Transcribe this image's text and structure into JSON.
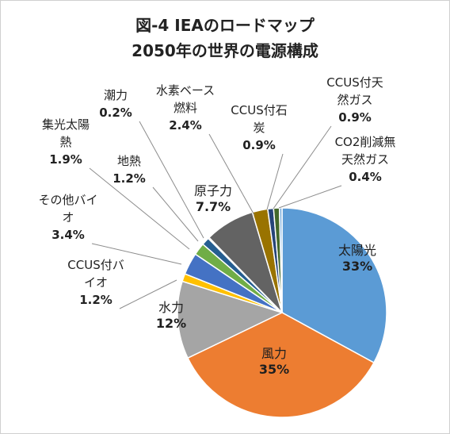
{
  "chart_data": {
    "type": "pie",
    "title": [
      "図-4 IEAのロードマップ",
      "2050年の世界の電源構成"
    ],
    "start_angle_deg": 0,
    "direction": "clockwise",
    "slices": [
      {
        "name": "太陽光",
        "value": 33,
        "display": "33%",
        "color": "#5b9bd5",
        "label_lines": [
          "太陽光"
        ]
      },
      {
        "name": "風力",
        "value": 35,
        "display": "35%",
        "color": "#ed7d31",
        "label_lines": [
          "風力"
        ]
      },
      {
        "name": "水力",
        "value": 12,
        "display": "12%",
        "color": "#a5a5a5",
        "label_lines": [
          "水力"
        ]
      },
      {
        "name": "CCUS付バイオ",
        "value": 1.2,
        "display": "1.2%",
        "color": "#ffc000",
        "label_lines": [
          "CCUS付バ",
          "イオ"
        ]
      },
      {
        "name": "その他バイオ",
        "value": 3.4,
        "display": "3.4%",
        "color": "#4472c4",
        "label_lines": [
          "その他バイ",
          "オ"
        ]
      },
      {
        "name": "集光太陽熱",
        "value": 1.9,
        "display": "1.9%",
        "color": "#70ad47",
        "label_lines": [
          "集光太陽",
          "熱"
        ]
      },
      {
        "name": "地熱",
        "value": 1.2,
        "display": "1.2%",
        "color": "#255e91",
        "label_lines": [
          "地熱"
        ]
      },
      {
        "name": "潮力",
        "value": 0.2,
        "display": "0.2%",
        "color": "#9e480e",
        "label_lines": [
          "潮力"
        ]
      },
      {
        "name": "原子力",
        "value": 7.7,
        "display": "7.7%",
        "color": "#636363",
        "label_lines": [
          "原子力"
        ]
      },
      {
        "name": "水素ベース燃料",
        "value": 2.4,
        "display": "2.4%",
        "color": "#997300",
        "label_lines": [
          "水素ベース",
          "燃料"
        ]
      },
      {
        "name": "CCUS付石炭",
        "value": 0.9,
        "display": "0.9%",
        "color": "#264478",
        "label_lines": [
          "CCUS付石",
          "炭"
        ]
      },
      {
        "name": "CCUS付天然ガス",
        "value": 0.9,
        "display": "0.9%",
        "color": "#43682b",
        "label_lines": [
          "CCUS付天",
          "然ガス"
        ]
      },
      {
        "name": "CO2削減無天然ガス",
        "value": 0.4,
        "display": "0.4%",
        "color": "#7cafdd",
        "label_lines": [
          "CO2削減無",
          "天然ガス"
        ]
      }
    ]
  }
}
